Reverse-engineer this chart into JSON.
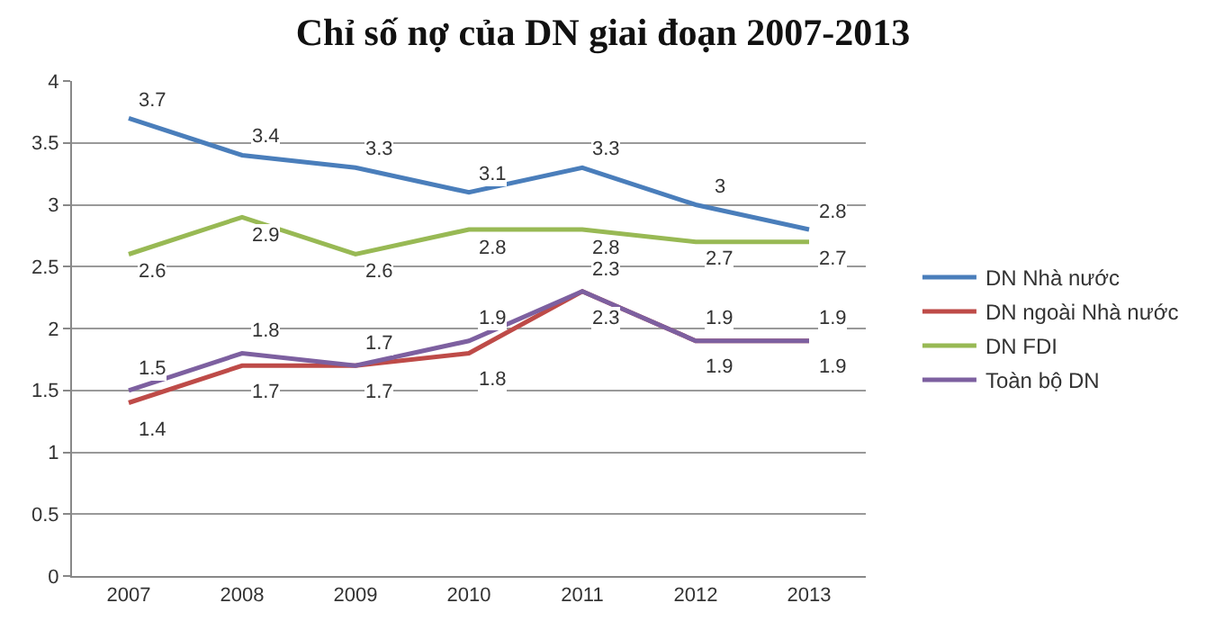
{
  "chart_data": {
    "type": "line",
    "title": "Chỉ số nợ của DN giai đoạn 2007-2013",
    "categories": [
      "2007",
      "2008",
      "2009",
      "2010",
      "2011",
      "2012",
      "2013"
    ],
    "series": [
      {
        "name": "DN Nhà nước",
        "color": "#4a7ebb",
        "values": [
          3.7,
          3.4,
          3.3,
          3.1,
          3.3,
          3,
          2.8
        ]
      },
      {
        "name": "DN ngoài Nhà nước",
        "color": "#be4b48",
        "values": [
          1.4,
          1.7,
          1.7,
          1.8,
          2.3,
          1.9,
          1.9
        ]
      },
      {
        "name": "DN FDI",
        "color": "#98b954",
        "values": [
          2.6,
          2.9,
          2.6,
          2.8,
          2.8,
          2.7,
          2.7
        ]
      },
      {
        "name": "Toàn bộ DN",
        "color": "#7d60a0",
        "values": [
          1.5,
          1.8,
          1.7,
          1.9,
          2.3,
          1.9,
          1.9
        ]
      }
    ],
    "ylim": [
      0,
      4
    ],
    "yticks": [
      0,
      0.5,
      1,
      1.5,
      2,
      2.5,
      3,
      3.5,
      4
    ],
    "grid": "y",
    "legend": "right",
    "marker": "none",
    "line_style": "solid",
    "data_labels": true
  }
}
